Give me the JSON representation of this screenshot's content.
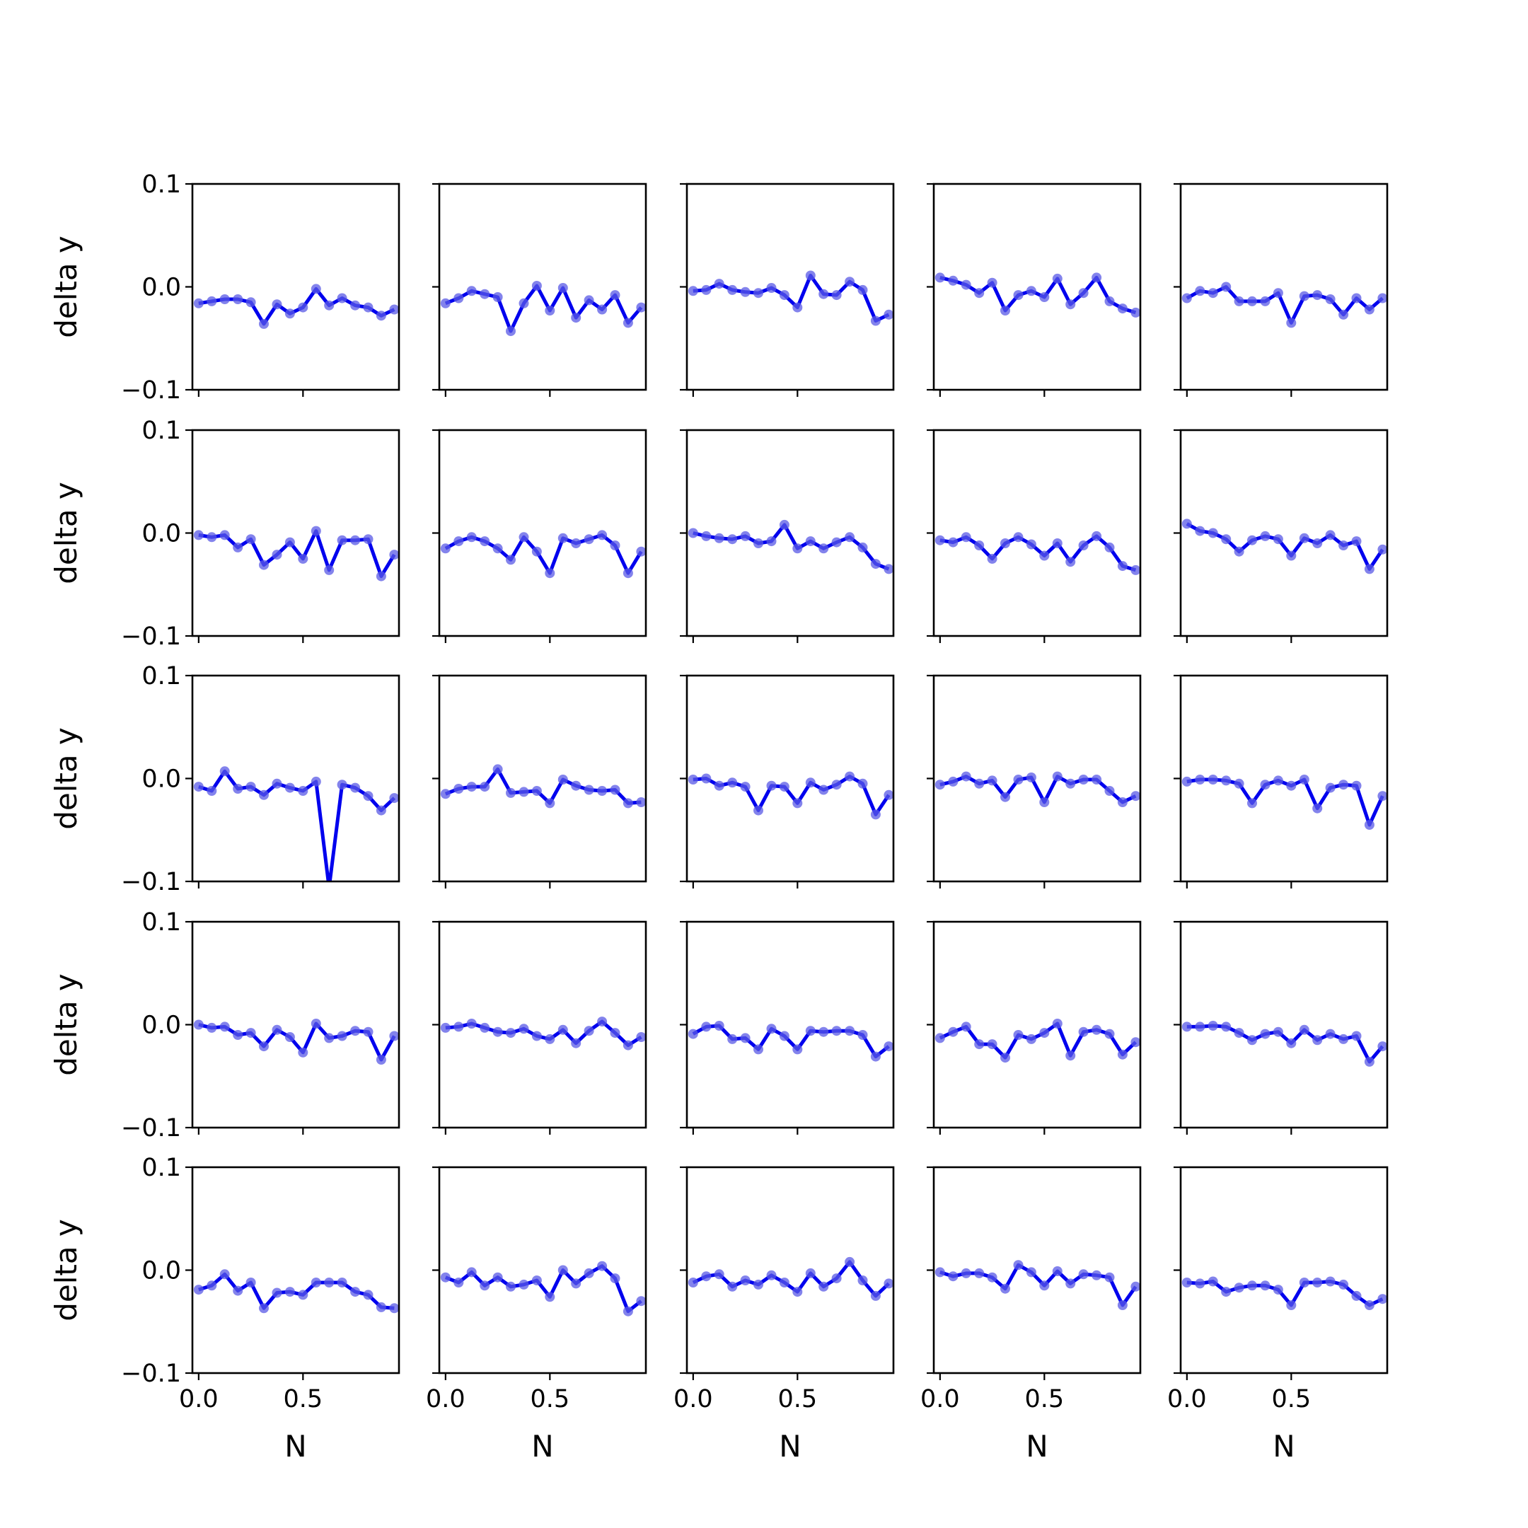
{
  "chart_data": {
    "type": "line",
    "layout": "grid",
    "rows": 5,
    "cols": 5,
    "xlabel": "N",
    "ylabel": "delta y",
    "xlim": [
      -0.03,
      0.96
    ],
    "ylim": [
      -0.1,
      0.1
    ],
    "xticks": [
      0.0,
      0.5
    ],
    "xtick_labels": [
      "0.0",
      "0.5"
    ],
    "yticks": [
      0.1,
      0.0,
      -0.1
    ],
    "ytick_labels": [
      "0.1",
      "0.0",
      "−0.1"
    ],
    "grid": false,
    "line_color": "#0000ee",
    "marker_color": "#5a5ae6",
    "x": [
      0.0,
      0.0625,
      0.125,
      0.1875,
      0.25,
      0.3125,
      0.375,
      0.4375,
      0.5,
      0.5625,
      0.625,
      0.6875,
      0.75,
      0.8125,
      0.875,
      0.9375
    ],
    "panels": [
      {
        "values": [
          -0.016,
          -0.014,
          -0.012,
          -0.012,
          -0.015,
          -0.036,
          -0.017,
          -0.026,
          -0.02,
          -0.002,
          -0.018,
          -0.011,
          -0.018,
          -0.02,
          -0.028,
          -0.022
        ]
      },
      {
        "values": [
          -0.016,
          -0.011,
          -0.004,
          -0.007,
          -0.01,
          -0.043,
          -0.016,
          0.001,
          -0.023,
          -0.001,
          -0.03,
          -0.013,
          -0.022,
          -0.008,
          -0.035,
          -0.02
        ]
      },
      {
        "values": [
          -0.004,
          -0.003,
          0.003,
          -0.003,
          -0.005,
          -0.006,
          -0.001,
          -0.008,
          -0.02,
          0.011,
          -0.007,
          -0.008,
          0.005,
          -0.003,
          -0.033,
          -0.027
        ]
      },
      {
        "values": [
          0.009,
          0.006,
          0.002,
          -0.006,
          0.004,
          -0.023,
          -0.008,
          -0.004,
          -0.01,
          0.008,
          -0.017,
          -0.006,
          0.009,
          -0.014,
          -0.021,
          -0.025
        ]
      },
      {
        "values": [
          -0.011,
          -0.004,
          -0.006,
          0.0,
          -0.014,
          -0.014,
          -0.014,
          -0.006,
          -0.035,
          -0.009,
          -0.008,
          -0.012,
          -0.027,
          -0.011,
          -0.022,
          -0.011
        ]
      },
      {
        "values": [
          -0.002,
          -0.004,
          -0.002,
          -0.014,
          -0.006,
          -0.031,
          -0.021,
          -0.009,
          -0.025,
          0.002,
          -0.036,
          -0.007,
          -0.007,
          -0.006,
          -0.042,
          -0.021
        ]
      },
      {
        "values": [
          -0.015,
          -0.008,
          -0.004,
          -0.008,
          -0.015,
          -0.026,
          -0.004,
          -0.018,
          -0.039,
          -0.005,
          -0.01,
          -0.006,
          -0.002,
          -0.012,
          -0.039,
          -0.018
        ]
      },
      {
        "values": [
          0.0,
          -0.003,
          -0.005,
          -0.006,
          -0.003,
          -0.01,
          -0.008,
          0.008,
          -0.015,
          -0.008,
          -0.015,
          -0.009,
          -0.004,
          -0.014,
          -0.03,
          -0.035
        ]
      },
      {
        "values": [
          -0.007,
          -0.009,
          -0.004,
          -0.012,
          -0.025,
          -0.01,
          -0.004,
          -0.011,
          -0.022,
          -0.01,
          -0.028,
          -0.012,
          -0.003,
          -0.014,
          -0.032,
          -0.036
        ]
      },
      {
        "values": [
          0.009,
          0.002,
          0.0,
          -0.006,
          -0.018,
          -0.007,
          -0.003,
          -0.006,
          -0.022,
          -0.005,
          -0.01,
          -0.002,
          -0.012,
          -0.008,
          -0.035,
          -0.016
        ]
      },
      {
        "values": [
          -0.008,
          -0.012,
          0.007,
          -0.01,
          -0.008,
          -0.016,
          -0.005,
          -0.009,
          -0.012,
          -0.003,
          -0.106,
          -0.006,
          -0.009,
          -0.017,
          -0.031,
          -0.019
        ]
      },
      {
        "values": [
          -0.015,
          -0.01,
          -0.008,
          -0.008,
          0.009,
          -0.014,
          -0.013,
          -0.012,
          -0.024,
          -0.001,
          -0.007,
          -0.011,
          -0.012,
          -0.011,
          -0.024,
          -0.023
        ]
      },
      {
        "values": [
          -0.001,
          0.0,
          -0.007,
          -0.004,
          -0.008,
          -0.031,
          -0.007,
          -0.008,
          -0.024,
          -0.004,
          -0.011,
          -0.006,
          0.002,
          -0.005,
          -0.035,
          -0.016
        ]
      },
      {
        "values": [
          -0.006,
          -0.003,
          0.002,
          -0.005,
          -0.002,
          -0.018,
          -0.001,
          0.001,
          -0.023,
          0.002,
          -0.005,
          -0.001,
          -0.001,
          -0.012,
          -0.023,
          -0.017
        ]
      },
      {
        "values": [
          -0.003,
          -0.001,
          -0.001,
          -0.002,
          -0.005,
          -0.024,
          -0.006,
          -0.002,
          -0.007,
          -0.001,
          -0.029,
          -0.009,
          -0.006,
          -0.007,
          -0.045,
          -0.017
        ]
      },
      {
        "values": [
          0.0,
          -0.003,
          -0.002,
          -0.01,
          -0.008,
          -0.021,
          -0.005,
          -0.012,
          -0.027,
          0.001,
          -0.013,
          -0.011,
          -0.006,
          -0.007,
          -0.034,
          -0.011
        ]
      },
      {
        "values": [
          -0.003,
          -0.002,
          0.001,
          -0.003,
          -0.007,
          -0.008,
          -0.004,
          -0.011,
          -0.014,
          -0.005,
          -0.018,
          -0.006,
          0.003,
          -0.008,
          -0.02,
          -0.012
        ]
      },
      {
        "values": [
          -0.009,
          -0.002,
          -0.001,
          -0.014,
          -0.013,
          -0.024,
          -0.004,
          -0.011,
          -0.024,
          -0.006,
          -0.007,
          -0.006,
          -0.006,
          -0.01,
          -0.031,
          -0.021
        ]
      },
      {
        "values": [
          -0.013,
          -0.007,
          -0.002,
          -0.019,
          -0.019,
          -0.032,
          -0.01,
          -0.014,
          -0.008,
          0.001,
          -0.03,
          -0.007,
          -0.005,
          -0.009,
          -0.029,
          -0.017
        ]
      },
      {
        "values": [
          -0.002,
          -0.002,
          -0.001,
          -0.002,
          -0.008,
          -0.015,
          -0.009,
          -0.007,
          -0.018,
          -0.005,
          -0.015,
          -0.009,
          -0.014,
          -0.011,
          -0.036,
          -0.021
        ]
      },
      {
        "values": [
          -0.019,
          -0.015,
          -0.004,
          -0.02,
          -0.012,
          -0.037,
          -0.022,
          -0.021,
          -0.024,
          -0.012,
          -0.012,
          -0.012,
          -0.021,
          -0.024,
          -0.036,
          -0.037
        ]
      },
      {
        "values": [
          -0.007,
          -0.012,
          -0.002,
          -0.015,
          -0.007,
          -0.016,
          -0.014,
          -0.01,
          -0.026,
          0.0,
          -0.013,
          -0.003,
          0.004,
          -0.008,
          -0.04,
          -0.03
        ]
      },
      {
        "values": [
          -0.012,
          -0.006,
          -0.004,
          -0.016,
          -0.01,
          -0.014,
          -0.005,
          -0.012,
          -0.021,
          -0.003,
          -0.016,
          -0.008,
          0.008,
          -0.01,
          -0.025,
          -0.013
        ]
      },
      {
        "values": [
          -0.002,
          -0.006,
          -0.003,
          -0.003,
          -0.007,
          -0.018,
          0.005,
          -0.002,
          -0.015,
          -0.001,
          -0.013,
          -0.004,
          -0.005,
          -0.007,
          -0.034,
          -0.016
        ]
      },
      {
        "values": [
          -0.012,
          -0.013,
          -0.011,
          -0.021,
          -0.017,
          -0.015,
          -0.015,
          -0.019,
          -0.034,
          -0.012,
          -0.012,
          -0.011,
          -0.014,
          -0.025,
          -0.034,
          -0.028
        ]
      }
    ]
  }
}
